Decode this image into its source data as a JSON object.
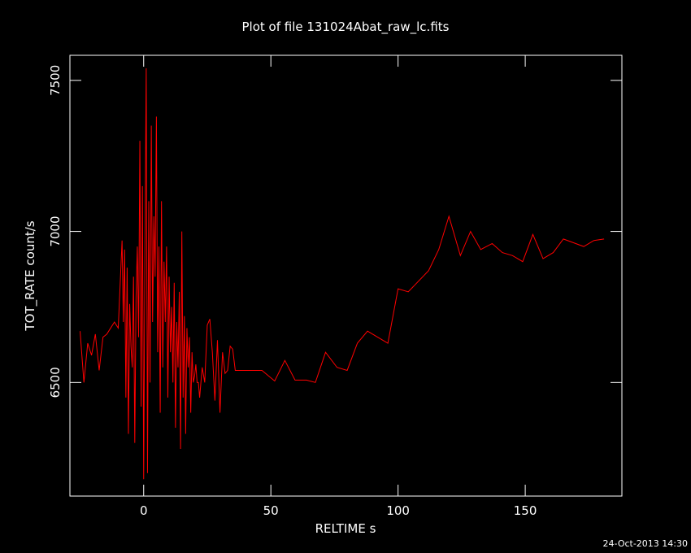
{
  "chart_data": {
    "type": "line",
    "title": "Plot of file 131024Abat_raw_lc.fits",
    "x_label": "RELTIME  s",
    "y_label": "TOT_RATE  count/s",
    "timestamp": "24-Oct-2013 14:30",
    "xlim": [
      -29,
      188
    ],
    "ylim": [
      6124,
      7583
    ],
    "xticks": [
      0,
      50,
      100,
      150
    ],
    "yticks": [
      6500,
      7000,
      7500
    ],
    "color": "#ff0000",
    "x": [
      -25,
      -23.5,
      -22,
      -20.5,
      -19,
      -17.5,
      -16,
      -14.5,
      -13,
      -11.5,
      -10,
      -8.5,
      -8,
      -7.5,
      -7,
      -6.5,
      -6,
      -5.5,
      -5,
      -4.5,
      -4,
      -3.5,
      -3,
      -2.5,
      -2,
      -1.5,
      -1,
      -0.5,
      0,
      0.5,
      1,
      1.5,
      2,
      2.5,
      3,
      3.5,
      4,
      4.5,
      5,
      5.5,
      6,
      6.5,
      7,
      7.5,
      8,
      8.5,
      9,
      9.5,
      10,
      10.5,
      11,
      11.5,
      12,
      12.5,
      13,
      13.5,
      14,
      14.5,
      15,
      15.5,
      16,
      16.5,
      17,
      17.5,
      18,
      18.5,
      19,
      19.5,
      20,
      20.5,
      21,
      21.5,
      22,
      23,
      24,
      25,
      26,
      27,
      28,
      29,
      30,
      31,
      32,
      33,
      34,
      35,
      36,
      39.5,
      46.5,
      51.5,
      55.5,
      59.5,
      64,
      67.5,
      71.5,
      76,
      80,
      84,
      88,
      96,
      100,
      104,
      112,
      116,
      120,
      124.5,
      128.5,
      132.5,
      137,
      141,
      145,
      149,
      153,
      157,
      161,
      165,
      173,
      177,
      181
    ],
    "values": [
      6670,
      6500,
      6630,
      6590,
      6660,
      6540,
      6650,
      6660,
      6680,
      6700,
      6680,
      6970,
      6700,
      6940,
      6450,
      6880,
      6330,
      6760,
      6620,
      6550,
      6850,
      6300,
      6780,
      6950,
      6650,
      7300,
      6420,
      7150,
      6180,
      6950,
      7540,
      6200,
      7100,
      6500,
      7350,
      6700,
      7050,
      6850,
      7380,
      6600,
      6950,
      6400,
      7100,
      6550,
      6900,
      6700,
      6950,
      6450,
      6850,
      6600,
      6750,
      6500,
      6830,
      6350,
      6700,
      6550,
      6800,
      6280,
      7000,
      6450,
      6720,
      6330,
      6680,
      6550,
      6650,
      6400,
      6600,
      6500,
      6520,
      6560,
      6500,
      6500,
      6450,
      6550,
      6500,
      6690,
      6710,
      6600,
      6440,
      6640,
      6400,
      6600,
      6530,
      6540,
      6620,
      6610,
      6540,
      6540,
      6540,
      6505,
      6573,
      6508,
      6508,
      6500,
      6600,
      6550,
      6540,
      6630,
      6670,
      6630,
      6810,
      6800,
      6870,
      6940,
      7050,
      6920,
      7000,
      6940,
      6960,
      6930,
      6920,
      6900,
      6990,
      6910,
      6930,
      6975,
      6950,
      6970,
      6975
    ]
  }
}
